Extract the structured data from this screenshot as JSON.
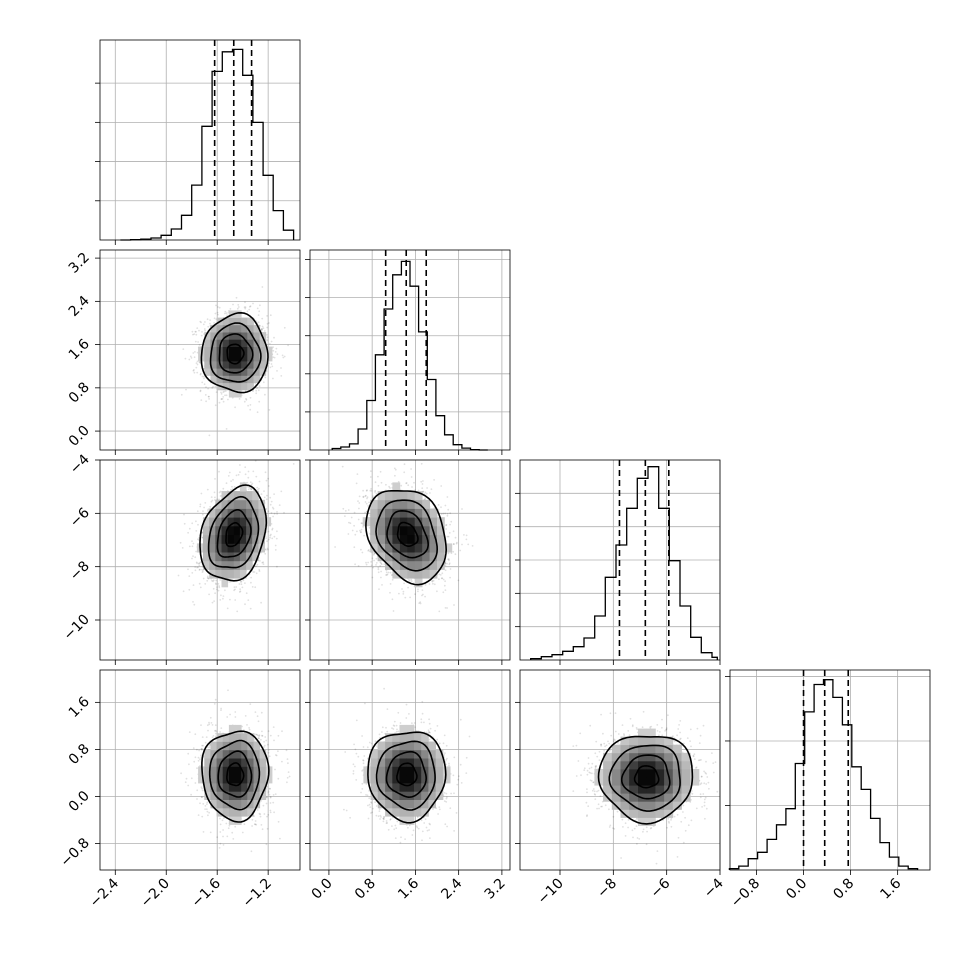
{
  "chart_data": {
    "type": "corner",
    "grid": true,
    "variables": [
      {
        "range": [
          -2.52,
          -0.95
        ],
        "ticks": [
          -2.4,
          -2.0,
          -1.6,
          -1.2
        ],
        "tick_labels": [
          "−2.4",
          "−2.0",
          "−1.6",
          "−1.2"
        ],
        "quantiles": [
          -1.62,
          -1.47,
          -1.33
        ],
        "hist_edges": [
          -2.36,
          -2.28,
          -2.2,
          -2.12,
          -2.04,
          -1.96,
          -1.88,
          -1.8,
          -1.72,
          -1.64,
          -1.56,
          -1.48,
          -1.4,
          -1.32,
          -1.24,
          -1.16,
          -1.08,
          -1.0
        ],
        "hist_counts": [
          0,
          1,
          2,
          5,
          12,
          28,
          63,
          140,
          290,
          430,
          480,
          486,
          420,
          300,
          165,
          75,
          25
        ],
        "hist_ymax": 510,
        "hist_yticks": [
          100,
          200,
          300,
          400
        ],
        "mean": -1.46,
        "sd": 0.13
      },
      {
        "range": [
          -0.35,
          3.35
        ],
        "ticks": [
          0.0,
          0.8,
          1.6,
          2.4,
          3.2
        ],
        "tick_labels": [
          "0.0",
          "0.8",
          "1.6",
          "2.4",
          "3.2"
        ],
        "quantiles": [
          1.05,
          1.43,
          1.8
        ],
        "hist_edges": [
          0.06,
          0.22,
          0.38,
          0.54,
          0.7,
          0.86,
          1.02,
          1.18,
          1.34,
          1.5,
          1.66,
          1.82,
          1.98,
          2.14,
          2.3,
          2.46,
          2.62,
          2.78,
          2.94
        ],
        "hist_counts": [
          4,
          8,
          16,
          55,
          130,
          250,
          370,
          460,
          495,
          430,
          310,
          185,
          90,
          40,
          14,
          5,
          1,
          0
        ],
        "hist_ymax": 525,
        "hist_yticks": [
          100,
          200,
          300,
          400,
          500
        ],
        "mean": 1.45,
        "sd": 0.37
      },
      {
        "range": [
          -11.5,
          -4.0
        ],
        "ticks": [
          -10,
          -8,
          -6,
          -4
        ],
        "tick_labels": [
          "−10",
          "−8",
          "−6",
          "−4"
        ],
        "quantiles": [
          -7.77,
          -6.8,
          -5.92
        ],
        "hist_edges": [
          -11.1,
          -10.7,
          -10.3,
          -9.9,
          -9.5,
          -9.1,
          -8.7,
          -8.3,
          -7.9,
          -7.5,
          -7.1,
          -6.7,
          -6.3,
          -5.9,
          -5.5,
          -5.1,
          -4.7,
          -4.3,
          -4.1
        ],
        "hist_counts": [
          4,
          10,
          16,
          26,
          40,
          66,
          132,
          248,
          345,
          455,
          545,
          580,
          455,
          298,
          162,
          68,
          22,
          8
        ],
        "hist_ymax": 600,
        "hist_yticks": [
          100,
          200,
          300,
          400,
          500
        ],
        "mean": -6.8,
        "sd": 0.9
      },
      {
        "range": [
          -1.25,
          2.15
        ],
        "ticks": [
          -0.8,
          0.0,
          0.8,
          1.6
        ],
        "tick_labels": [
          "−0.8",
          "0.0",
          "0.8",
          "1.6"
        ],
        "quantiles": [
          0.0,
          0.36,
          0.76
        ],
        "hist_edges": [
          -1.26,
          -1.1,
          -0.94,
          -0.78,
          -0.62,
          -0.46,
          -0.3,
          -0.14,
          0.02,
          0.18,
          0.34,
          0.5,
          0.66,
          0.82,
          0.98,
          1.14,
          1.3,
          1.46,
          1.62,
          1.78,
          1.94
        ],
        "hist_counts": [
          4,
          12,
          35,
          55,
          95,
          140,
          190,
          330,
          490,
          575,
          590,
          535,
          450,
          320,
          250,
          160,
          85,
          40,
          12,
          4
        ],
        "hist_ymax": 620,
        "hist_yticks": [
          200,
          400,
          600
        ],
        "mean": 0.36,
        "sd": 0.38
      }
    ],
    "pairs": [
      {
        "row": 1,
        "col": 0,
        "center": [
          -1.46,
          1.43
        ],
        "sigma": [
          0.13,
          0.36
        ],
        "rho": 0.0
      },
      {
        "row": 2,
        "col": 0,
        "center": [
          -1.47,
          -6.8
        ],
        "sigma": [
          0.13,
          0.88
        ],
        "rho": 0.25
      },
      {
        "row": 2,
        "col": 1,
        "center": [
          1.45,
          -6.8
        ],
        "sigma": [
          0.37,
          0.88
        ],
        "rho": -0.25
      },
      {
        "row": 3,
        "col": 0,
        "center": [
          -1.46,
          0.37
        ],
        "sigma": [
          0.13,
          0.38
        ],
        "rho": 0.0
      },
      {
        "row": 3,
        "col": 1,
        "center": [
          1.44,
          0.37
        ],
        "sigma": [
          0.36,
          0.38
        ],
        "rho": 0.0
      },
      {
        "row": 3,
        "col": 2,
        "center": [
          -6.75,
          0.33
        ],
        "sigma": [
          0.88,
          0.37
        ],
        "rho": 0.0
      }
    ],
    "contour_levels_sigma": [
      0.5,
      1.0,
      1.5,
      2.0
    ]
  }
}
